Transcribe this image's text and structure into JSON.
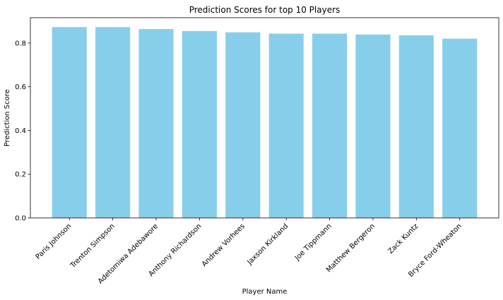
{
  "chart_data": {
    "type": "bar",
    "title": "Prediction Scores for top 10 Players",
    "xlabel": "Player Name",
    "ylabel": "Prediction Score",
    "categories": [
      "Paris Johnson",
      "Trenton Simpson",
      "Adetomiwa Adebawore",
      "Anthony Richardson",
      "Andrew Vorhees",
      "Jaxson Kirkland",
      "Joe Tippmann",
      "Matthew Bergeron",
      "Zack Kuntz",
      "Bryce Ford-Wheaton"
    ],
    "values": [
      0.873,
      0.873,
      0.864,
      0.855,
      0.849,
      0.843,
      0.843,
      0.839,
      0.835,
      0.82
    ],
    "ylim": [
      0,
      0.916
    ],
    "yticks": [
      0.0,
      0.2,
      0.4,
      0.6,
      0.8
    ],
    "ytick_labels": [
      "0.0",
      "0.2",
      "0.4",
      "0.6",
      "0.8"
    ],
    "bar_color": "#87ceeb",
    "grid": false,
    "legend": false
  }
}
